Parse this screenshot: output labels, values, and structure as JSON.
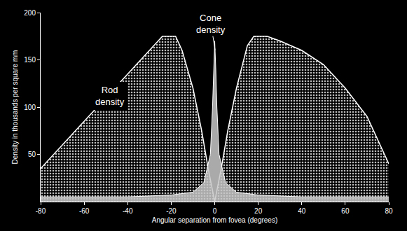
{
  "chart_data": {
    "type": "area",
    "x_label": "Angular separation from fovea (degrees)",
    "y_label": "Density in thousands per square mm",
    "xlim": [
      -80,
      80
    ],
    "xticks": [
      -80,
      -60,
      -40,
      -20,
      0,
      20,
      40,
      60,
      80
    ],
    "ylim": [
      0,
      200
    ],
    "yticks": [
      50,
      100,
      150,
      200
    ],
    "grid": false,
    "annotations": [
      {
        "lines": [
          "Cone",
          "density"
        ]
      },
      {
        "lines": [
          "Rod",
          "density"
        ]
      }
    ],
    "series": [
      {
        "color": "#ffffff",
        "x": [
          -80,
          -70,
          -60,
          -50,
          -40,
          -30,
          -24,
          -18,
          -15,
          -10,
          -6,
          -3,
          0,
          3,
          6,
          10,
          15,
          18,
          24,
          30,
          40,
          50,
          60,
          70,
          80
        ],
        "values": [
          35,
          60,
          85,
          110,
          135,
          160,
          175,
          175,
          160,
          120,
          75,
          35,
          0,
          35,
          75,
          120,
          165,
          175,
          175,
          170,
          160,
          145,
          120,
          90,
          40
        ]
      },
      {
        "color": "#ffffff",
        "x": [
          -80,
          -40,
          -20,
          -10,
          -5,
          -2,
          -1,
          -0.5,
          0,
          0.5,
          1,
          2,
          5,
          10,
          20,
          40,
          80
        ],
        "values": [
          5,
          5,
          7,
          10,
          20,
          50,
          100,
          140,
          170,
          140,
          100,
          50,
          20,
          10,
          7,
          5,
          5
        ]
      }
    ]
  }
}
